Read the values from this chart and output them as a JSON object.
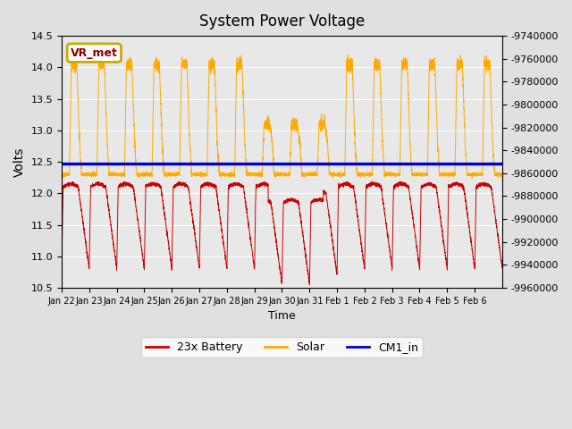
{
  "title": "System Power Voltage",
  "xlabel": "Time",
  "ylabel": "Volts",
  "ylim_left": [
    10.5,
    14.5
  ],
  "ylim_right": [
    -9960000,
    -9740000
  ],
  "right_ticks": [
    -9740000,
    -9760000,
    -9780000,
    -9800000,
    -9820000,
    -9840000,
    -9860000,
    -9880000,
    -9900000,
    -9920000,
    -9940000,
    -9960000
  ],
  "xtick_labels": [
    "Jan 22",
    "Jan 23",
    "Jan 24",
    "Jan 25",
    "Jan 26",
    "Jan 27",
    "Jan 28",
    "Jan 29",
    "Jan 30",
    "Jan 31",
    "Feb 1",
    "Feb 2",
    "Feb 3",
    "Feb 4",
    "Feb 5",
    "Feb 6"
  ],
  "fig_bg_color": "#e0e0e0",
  "plot_bg_color": "#e8e8e8",
  "cm1_value": 12.47,
  "vr_met_label": "VR_met",
  "vr_met_box_color": "#ccaa00",
  "vr_met_text_color": "#8b0000",
  "battery_color": "#cc0000",
  "solar_color": "#ffaa00",
  "cm1_color": "#0000cc",
  "battery_label": "23x Battery",
  "solar_label": "Solar",
  "cm1_label": "CM1_in",
  "n_days": 16,
  "title_fontsize": 12
}
